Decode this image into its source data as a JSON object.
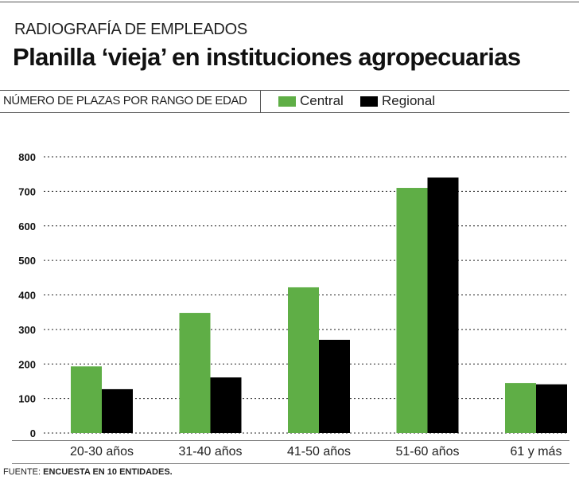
{
  "header": {
    "kicker": "RADIOGRAFÍA DE EMPLEADOS",
    "title": "Planilla ‘vieja’ en instituciones agropecuarias"
  },
  "source": {
    "label": "FUENTE:",
    "text": "ENCUESTA EN 10 ENTIDADES."
  },
  "chart_data": {
    "type": "bar",
    "title": "Planilla ‘vieja’ en instituciones agropecuarias",
    "subtitle": "NÚMERO DE PLAZAS POR RANGO DE EDAD",
    "categories": [
      "20-30 años",
      "31-40 años",
      "41-50 años",
      "51-60 años",
      "61 y más"
    ],
    "series": [
      {
        "name": "Central",
        "color": "#5fae46",
        "values": [
          193,
          348,
          422,
          710,
          145
        ]
      },
      {
        "name": "Regional",
        "color": "#000000",
        "values": [
          127,
          161,
          270,
          740,
          141
        ]
      }
    ],
    "ylim": [
      0,
      800
    ],
    "yticks": [
      0,
      100,
      200,
      300,
      400,
      500,
      600,
      700,
      800
    ],
    "grid": true,
    "legend": "top"
  }
}
